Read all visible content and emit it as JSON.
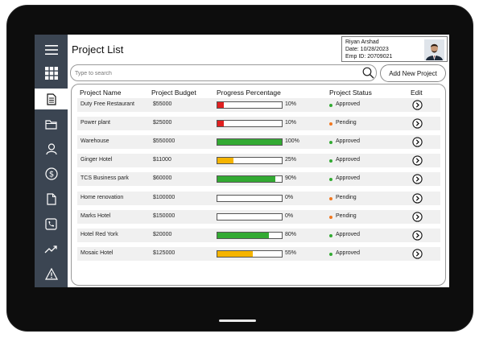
{
  "app": {
    "title": "Project List"
  },
  "user": {
    "name": "Riyan Arshad",
    "date": "Date: 10/28/2023",
    "emp_id": "Emp ID: 20709021"
  },
  "search": {
    "placeholder": "Type to search"
  },
  "actions": {
    "add_new_project": "Add New Project"
  },
  "sidebar": {
    "items": [
      {
        "icon": "menu-icon",
        "active": false
      },
      {
        "icon": "grid-icon",
        "active": false
      },
      {
        "icon": "document-icon",
        "active": true
      },
      {
        "icon": "folder-icon",
        "active": false
      },
      {
        "icon": "user-icon",
        "active": false
      },
      {
        "icon": "dollar-icon",
        "active": false
      },
      {
        "icon": "file-icon",
        "active": false
      },
      {
        "icon": "phone-icon",
        "active": false
      },
      {
        "icon": "trend-icon",
        "active": false
      },
      {
        "icon": "warning-icon",
        "active": false
      }
    ]
  },
  "table": {
    "headers": {
      "name": "Project Name",
      "budget": "Project Budget",
      "progress": "Progress Percentage",
      "status": "Project Status",
      "edit": "Edit"
    },
    "rows": [
      {
        "name": "Duty Free Restaurant",
        "budget": "$55000",
        "progress": 10,
        "progress_label": "10%",
        "status": "Approved"
      },
      {
        "name": "Power plant",
        "budget": "$25000",
        "progress": 10,
        "progress_label": "10%",
        "status": "Pending"
      },
      {
        "name": "Warehouse",
        "budget": "$550000",
        "progress": 100,
        "progress_label": "100%",
        "status": "Approved"
      },
      {
        "name": "Ginger Hotel",
        "budget": "$11000",
        "progress": 25,
        "progress_label": "25%",
        "status": "Approved"
      },
      {
        "name": "TCS Business park",
        "budget": "$60000",
        "progress": 90,
        "progress_label": "90%",
        "status": "Approved"
      },
      {
        "name": "Home renovation",
        "budget": "$100000",
        "progress": 0,
        "progress_label": "0%",
        "status": "Pending"
      },
      {
        "name": "Marks Hotel",
        "budget": "$150000",
        "progress": 0,
        "progress_label": "0%",
        "status": "Pending"
      },
      {
        "name": "Hotel Red York",
        "budget": "$20000",
        "progress": 80,
        "progress_label": "80%",
        "status": "Approved"
      },
      {
        "name": "Mosaic Hotel",
        "budget": "$125000",
        "progress": 55,
        "progress_label": "55%",
        "status": "Approved"
      }
    ]
  },
  "colors": {
    "sidebar_bg": "#3b4552",
    "progress_low": "#e02020",
    "progress_mid": "#f5b400",
    "progress_high": "#33aa33",
    "status_approved": "#33aa33",
    "status_pending": "#f07820"
  }
}
